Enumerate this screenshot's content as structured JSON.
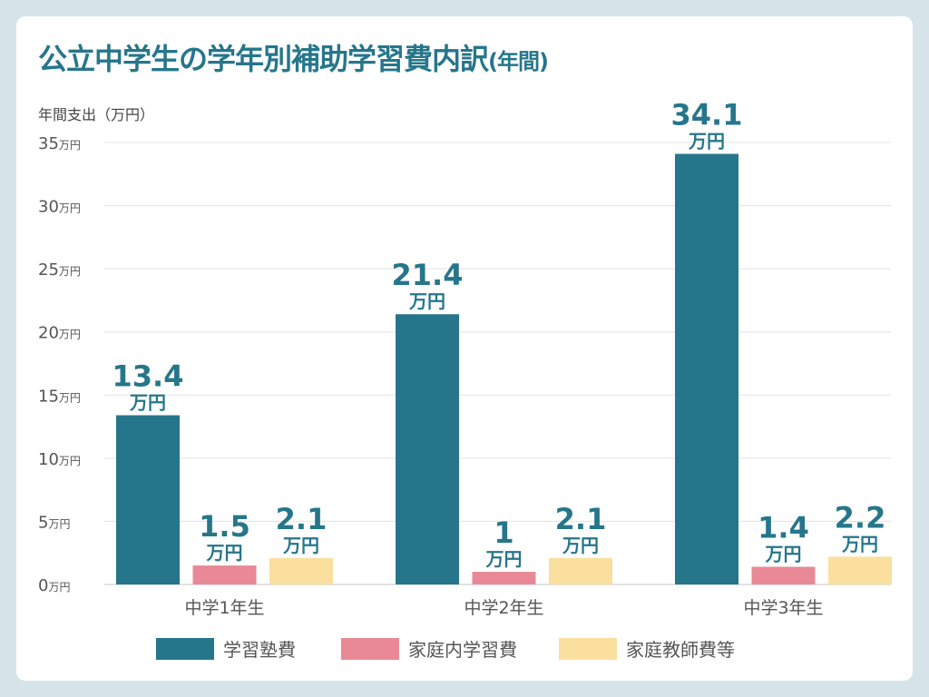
{
  "chart_data": {
    "type": "bar",
    "title": "公立中学生の学年別補助学習費内訳",
    "title_suffix": "(年間)",
    "ylabel": "年間支出（万円）",
    "unit": "万円",
    "ylim": [
      0,
      35
    ],
    "yticks": [
      0,
      5,
      10,
      15,
      20,
      25,
      30,
      35
    ],
    "grid": true,
    "legend_position": "bottom",
    "categories": [
      "中学1年生",
      "中学2年生",
      "中学3年生"
    ],
    "series": [
      {
        "name": "学習塾費",
        "color": "#26768b",
        "values": [
          13.4,
          21.4,
          34.1
        ]
      },
      {
        "name": "家庭内学習費",
        "color": "#e98896",
        "values": [
          1.5,
          1,
          1.4
        ]
      },
      {
        "name": "家庭教師費等",
        "color": "#fbdf9f",
        "values": [
          2.1,
          2.1,
          2.2
        ]
      }
    ]
  }
}
